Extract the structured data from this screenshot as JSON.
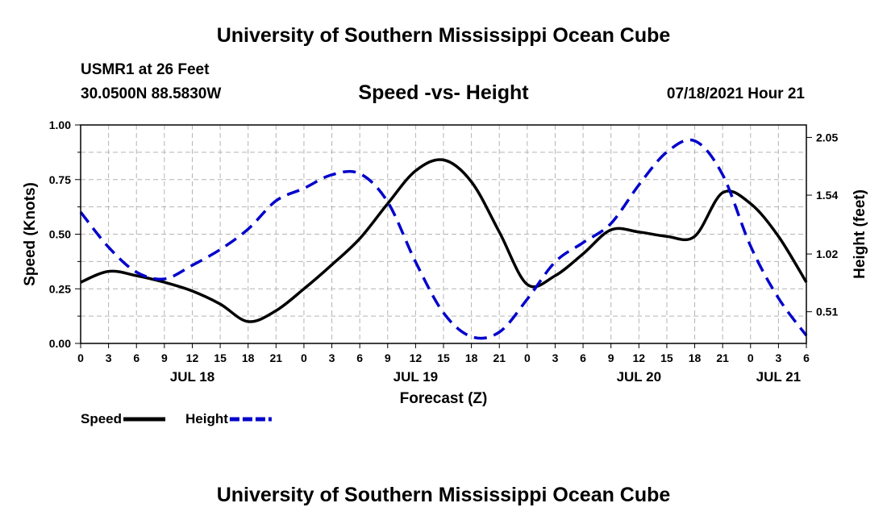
{
  "header": {
    "title": "University of Southern Mississippi Ocean Cube",
    "station": "USMR1 at 26 Feet",
    "coords": "30.0500N  88.5830W",
    "subtitle": "Speed -vs- Height",
    "datetime": "07/18/2021 Hour 21"
  },
  "footer": {
    "title": "University of Southern Mississippi Ocean Cube"
  },
  "chart_data": {
    "type": "line",
    "xlabel": "Forecast (Z)",
    "ylabel_left": "Speed (Knots)",
    "ylabel_right": "Height (feet)",
    "x_range_hours": [
      0,
      78
    ],
    "x_tick_step_hours": 3,
    "x_tick_labels": [
      "0",
      "3",
      "6",
      "9",
      "12",
      "15",
      "18",
      "21",
      "0",
      "3",
      "6",
      "9",
      "12",
      "15",
      "18",
      "21",
      "0",
      "3",
      "6",
      "9",
      "12",
      "15",
      "18",
      "21",
      "0",
      "3",
      "6"
    ],
    "date_labels": [
      {
        "label": "JUL 18",
        "hour": 12
      },
      {
        "label": "JUL 19",
        "hour": 36
      },
      {
        "label": "JUL 20",
        "hour": 60
      },
      {
        "label": "JUL 21",
        "hour": 75
      }
    ],
    "ylim_left": [
      0,
      1.0
    ],
    "yticks_left": [
      "0.00",
      "0.25",
      "0.50",
      "0.75",
      "1.00"
    ],
    "ylim_right": [
      0.23,
      2.16
    ],
    "yticks_right": [
      0.51,
      1.02,
      1.54,
      2.05
    ],
    "yticks_right_labels": [
      "0.51",
      "1.02",
      "1.54",
      "2.05"
    ],
    "grid": true,
    "series": [
      {
        "name": "Speed",
        "axis": "left",
        "color": "#000000",
        "dash": "solid",
        "x": [
          0,
          3,
          6,
          9,
          12,
          15,
          18,
          21,
          24,
          27,
          30,
          33,
          36,
          39,
          42,
          45,
          48,
          51,
          54,
          57,
          60,
          63,
          66,
          69,
          72,
          75,
          78
        ],
        "values": [
          0.28,
          0.33,
          0.31,
          0.28,
          0.24,
          0.18,
          0.1,
          0.15,
          0.25,
          0.36,
          0.48,
          0.64,
          0.79,
          0.84,
          0.74,
          0.51,
          0.27,
          0.31,
          0.41,
          0.52,
          0.51,
          0.49,
          0.49,
          0.69,
          0.64,
          0.49,
          0.28
        ]
      },
      {
        "name": "Height",
        "axis": "right",
        "color": "#0000cc",
        "dash": "dashed",
        "x": [
          0,
          3,
          6,
          9,
          12,
          15,
          18,
          21,
          24,
          27,
          30,
          33,
          36,
          39,
          42,
          45,
          48,
          51,
          54,
          57,
          60,
          63,
          66,
          69,
          72,
          75,
          78
        ],
        "values": [
          1.39,
          1.08,
          0.86,
          0.8,
          0.92,
          1.06,
          1.24,
          1.49,
          1.6,
          1.72,
          1.73,
          1.48,
          0.95,
          0.5,
          0.29,
          0.33,
          0.62,
          0.95,
          1.12,
          1.29,
          1.63,
          1.92,
          2.02,
          1.72,
          1.09,
          0.63,
          0.3
        ]
      }
    ],
    "legend": [
      {
        "label": "Speed",
        "color": "#000000",
        "dash": "solid"
      },
      {
        "label": "Height",
        "color": "#0000cc",
        "dash": "dashed"
      }
    ],
    "legend_position": "bottom-left"
  }
}
